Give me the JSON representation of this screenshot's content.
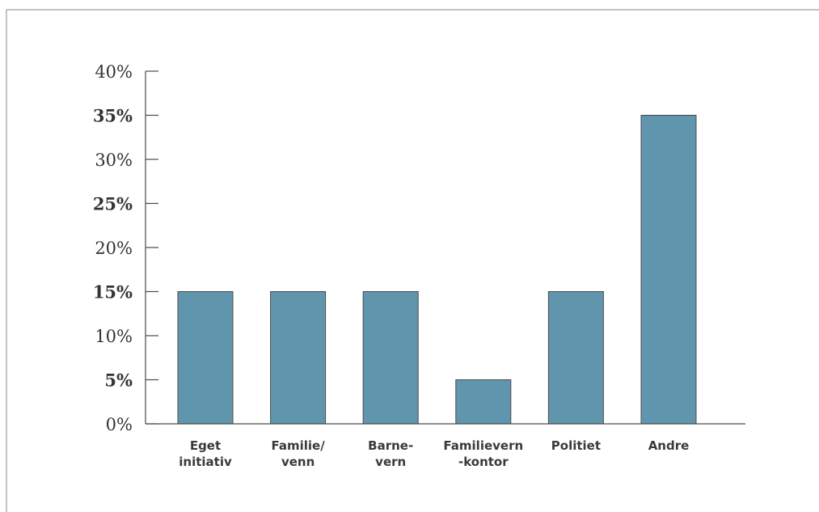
{
  "chart_data": {
    "type": "bar",
    "categories": [
      [
        "Eget",
        "initiativ"
      ],
      [
        "Familie/",
        "venn"
      ],
      [
        "Barne-",
        "vern"
      ],
      [
        "Familievern",
        "-kontor"
      ],
      [
        "Politiet"
      ],
      [
        "Andre"
      ]
    ],
    "values": [
      15,
      15,
      15,
      5,
      15,
      35
    ],
    "ylim": [
      0,
      40
    ],
    "yticks": [
      0,
      5,
      10,
      15,
      20,
      25,
      30,
      35,
      40
    ],
    "ytick_labels": [
      "0%",
      "5%",
      "10%",
      "15%",
      "20%",
      "25%",
      "30%",
      "35%",
      "40%"
    ],
    "ytick_bold": [
      false,
      true,
      false,
      true,
      false,
      true,
      false,
      true,
      false
    ],
    "title": "",
    "xlabel": "",
    "ylabel": "",
    "grid": false,
    "bar_color": "#6096ad"
  }
}
